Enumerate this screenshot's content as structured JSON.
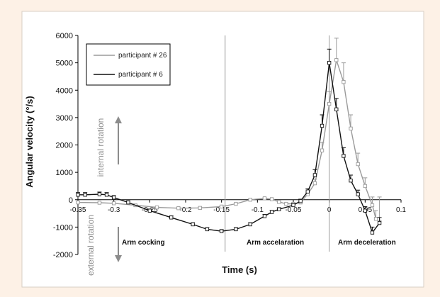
{
  "colors": {
    "page_background": "#fdf1e6",
    "plot_background": "#ffffff",
    "series_26": "#9a9a9a",
    "series_6": "#111111",
    "arrow": "#8c8c8c"
  },
  "chart_data": {
    "type": "line",
    "title": "",
    "xlabel": "Time (s)",
    "ylabel": "Angular velocity (°/s)",
    "xlim": [
      -0.35,
      0.1
    ],
    "ylim": [
      -2000,
      6000
    ],
    "xticks": [
      -0.35,
      -0.3,
      -0.25,
      -0.2,
      -0.15,
      -0.1,
      -0.05,
      0,
      0.05,
      0.1
    ],
    "xtick_labels": [
      "-0.35",
      "-0.3",
      "-0.25",
      "-0.2",
      "-0.15",
      "-0.1",
      "-0.05",
      "0",
      "0.05",
      "0.1"
    ],
    "yticks": [
      -2000,
      -1000,
      0,
      1000,
      2000,
      3000,
      4000,
      5000,
      6000
    ],
    "ytick_labels": [
      "-2000",
      "-1000",
      "0",
      "1000",
      "2000",
      "3000",
      "4000",
      "5000",
      "6000"
    ],
    "grid": false,
    "legend_position": "top-left",
    "series": [
      {
        "name": "participant # 26",
        "color": "#9a9a9a",
        "marker": "square-open",
        "error_bars": "upper",
        "x": [
          -0.35,
          -0.32,
          -0.3,
          -0.27,
          -0.24,
          -0.21,
          -0.18,
          -0.15,
          -0.13,
          -0.11,
          -0.09,
          -0.08,
          -0.07,
          -0.06,
          -0.05,
          -0.04,
          -0.03,
          -0.02,
          -0.01,
          0.0,
          0.01,
          0.02,
          0.03,
          0.04,
          0.05,
          0.06,
          0.065,
          0.07
        ],
        "y": [
          -100,
          -110,
          -130,
          -200,
          -280,
          -310,
          -300,
          -250,
          -150,
          0,
          50,
          20,
          -80,
          -150,
          -150,
          -100,
          200,
          600,
          1800,
          3500,
          5100,
          4300,
          2600,
          1300,
          500,
          -200,
          -700,
          -800
        ],
        "err": [
          20,
          20,
          20,
          20,
          20,
          20,
          20,
          20,
          20,
          20,
          20,
          20,
          20,
          20,
          30,
          50,
          80,
          150,
          300,
          450,
          800,
          700,
          500,
          400,
          300,
          300,
          300,
          900
        ]
      },
      {
        "name": "participant # 6",
        "color": "#111111",
        "marker": "square-open",
        "error_bars": "upper",
        "x": [
          -0.35,
          -0.34,
          -0.32,
          -0.31,
          -0.3,
          -0.28,
          -0.25,
          -0.22,
          -0.19,
          -0.17,
          -0.15,
          -0.13,
          -0.11,
          -0.09,
          -0.08,
          -0.07,
          -0.05,
          -0.04,
          -0.03,
          -0.02,
          -0.01,
          0.0,
          0.01,
          0.02,
          0.03,
          0.04,
          0.05,
          0.06,
          0.07
        ],
        "y": [
          180,
          180,
          200,
          180,
          80,
          -100,
          -400,
          -650,
          -900,
          -1080,
          -1150,
          -1080,
          -900,
          -600,
          -450,
          -350,
          -200,
          -50,
          300,
          900,
          2700,
          5000,
          3300,
          1600,
          700,
          200,
          -400,
          -1200,
          -850
        ],
        "err": [
          80,
          80,
          80,
          80,
          70,
          60,
          60,
          60,
          60,
          60,
          60,
          60,
          60,
          60,
          60,
          60,
          60,
          70,
          100,
          200,
          400,
          500,
          400,
          300,
          200,
          150,
          150,
          200,
          200
        ]
      }
    ],
    "vlines": [
      -0.145,
      0.0
    ],
    "annotations": {
      "internal_rotation": "internal rotation",
      "external_rotation": "external rotation",
      "phase_cocking": "Arm cocking",
      "phase_acceleration": "Arm accelaration",
      "phase_deceleration": "Arm deceleration"
    }
  }
}
